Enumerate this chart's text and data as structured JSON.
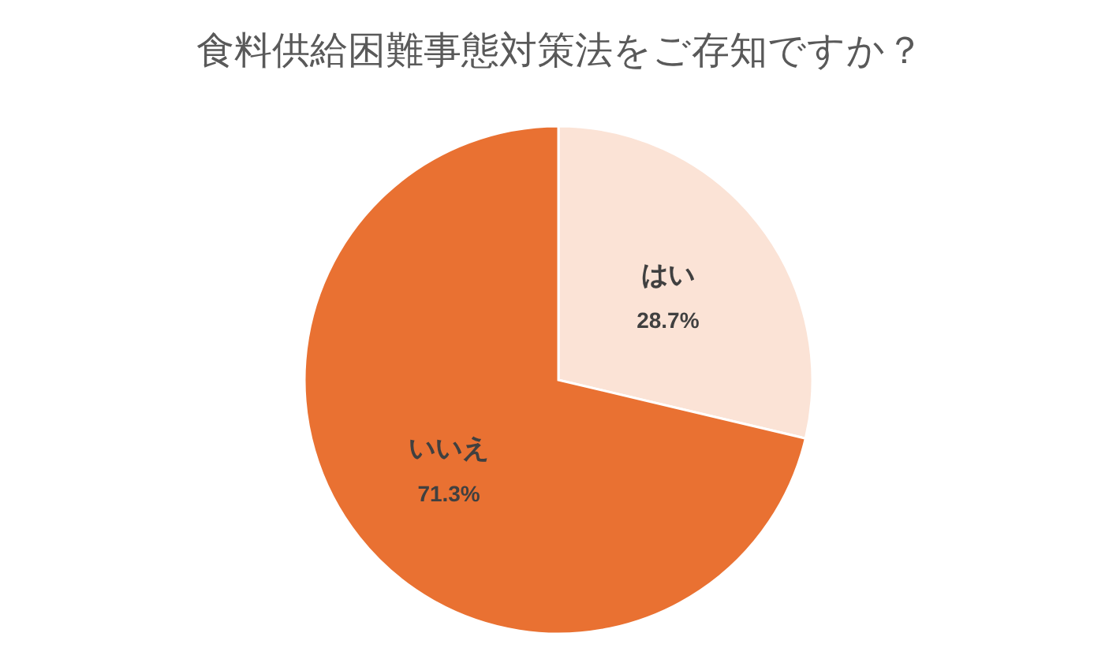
{
  "chart_data": {
    "type": "pie",
    "title": "食料供給困難事態対策法をご存知ですか？",
    "categories": [
      "はい",
      "いいえ"
    ],
    "values": [
      28.7,
      71.3
    ],
    "value_labels": [
      "28.7%",
      "71.3%"
    ],
    "colors": [
      "#fbe3d6",
      "#e97132"
    ]
  }
}
